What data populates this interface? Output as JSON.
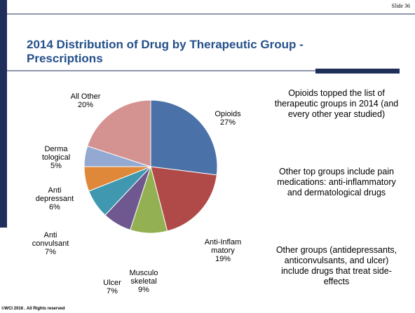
{
  "slide_number": "Slide 36",
  "chart_data": {
    "type": "pie",
    "title": "2014 Distribution of Drug by Therapeutic Group - Prescriptions",
    "categories": [
      "Opioids",
      "Anti-Inflam\nmatory",
      "Musculo\nskeletal",
      "Ulcer",
      "Anti\nconvulsant",
      "Anti\ndepressant",
      "Derma\ntological",
      "All Other"
    ],
    "values": [
      27,
      19,
      9,
      7,
      7,
      6,
      5,
      20
    ],
    "value_labels": [
      "27%",
      "19%",
      "9%",
      "7%",
      "7%",
      "6%",
      "5%",
      "20%"
    ],
    "colors": [
      "#4a72a8",
      "#b04a48",
      "#93b152",
      "#6f578f",
      "#3f97b0",
      "#e0883a",
      "#93a9d2",
      "#d49391"
    ]
  },
  "notes": [
    "Opioids topped the list of therapeutic groups in 2014 (and every other year studied)",
    "Other top groups include pain medications: anti-inflammatory and dermatological drugs",
    "Other groups (antidepressants, anticonvulsants, and ulcer) include drugs that treat side-effects"
  ],
  "footer": "©WCI 2016 . All Rights reserved"
}
